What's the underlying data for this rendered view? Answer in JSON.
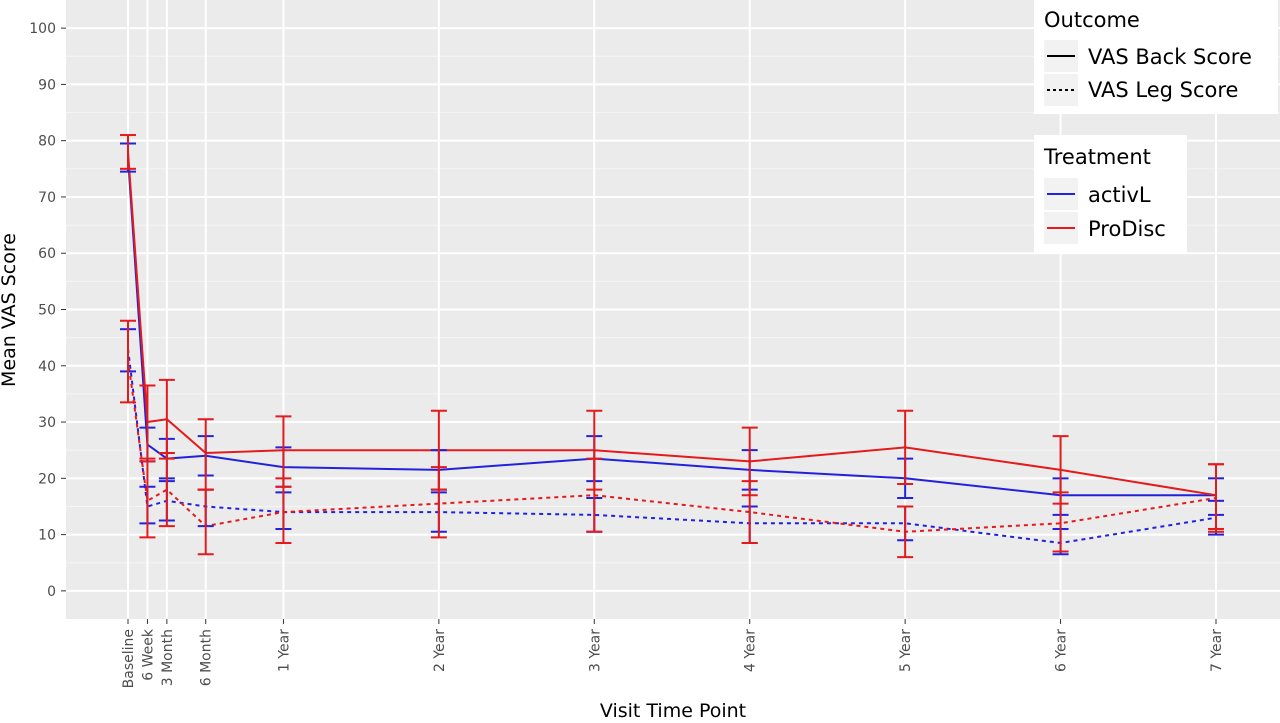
{
  "chart_data": {
    "type": "line",
    "xlabel": "Visit Time Point",
    "ylabel": "Mean VAS Score",
    "ylim": [
      -5,
      105
    ],
    "yticks": [
      0,
      10,
      20,
      30,
      40,
      50,
      60,
      70,
      80,
      90,
      100
    ],
    "x_months": [
      0,
      1.5,
      3,
      6,
      12,
      24,
      36,
      48,
      60,
      72,
      84
    ],
    "categories": [
      "Baseline",
      "6 Week",
      "3 Month",
      "6 Month",
      "1 Year",
      "2 Year",
      "3 Year",
      "4 Year",
      "5 Year",
      "6 Year",
      "7 Year"
    ],
    "grid": true,
    "legend_placement": "top-right",
    "legends": [
      {
        "title": "Outcome",
        "items": [
          {
            "label": "VAS Back Score",
            "linestyle": "solid"
          },
          {
            "label": "VAS Leg Score",
            "linestyle": "dotted"
          }
        ]
      },
      {
        "title": "Treatment",
        "items": [
          {
            "label": "activL",
            "color": "#2222dd"
          },
          {
            "label": "ProDisc",
            "color": "#e41a1c"
          }
        ]
      }
    ],
    "series": [
      {
        "treatment": "activL",
        "outcome": "VAS Back Score",
        "color": "#2222dd",
        "linestyle": "solid",
        "values": [
          77,
          26,
          23.5,
          24,
          22,
          21.5,
          23.5,
          21.5,
          20,
          17,
          17
        ],
        "lower": [
          74.5,
          23,
          20,
          20.5,
          18.5,
          18,
          19.5,
          18,
          16.5,
          13.5,
          13.5
        ],
        "upper": [
          79.5,
          29,
          27,
          27.5,
          25.5,
          25,
          27.5,
          25,
          23.5,
          20,
          20
        ]
      },
      {
        "treatment": "ProDisc",
        "outcome": "VAS Back Score",
        "color": "#e41a1c",
        "linestyle": "solid",
        "values": [
          78,
          30,
          30.5,
          24.5,
          25,
          25,
          25,
          23,
          25.5,
          21.5,
          17
        ],
        "lower": [
          75,
          23.5,
          23.5,
          18,
          18.5,
          18,
          18,
          17,
          19,
          15.5,
          11
        ],
        "upper": [
          81,
          36.5,
          37.5,
          30.5,
          31,
          32,
          32,
          29,
          32,
          27.5,
          22.5
        ]
      },
      {
        "treatment": "activL",
        "outcome": "VAS Leg Score",
        "color": "#2222dd",
        "linestyle": "dotted",
        "values": [
          43,
          15,
          16,
          15,
          14,
          14,
          13.5,
          12,
          12,
          8.5,
          13
        ],
        "lower": [
          39,
          12,
          12.5,
          11.5,
          11,
          10.5,
          10.5,
          8.5,
          9,
          6.5,
          10
        ],
        "upper": [
          46.5,
          18.5,
          19.5,
          18,
          17.5,
          17.5,
          16.5,
          15,
          15,
          11,
          16
        ]
      },
      {
        "treatment": "ProDisc",
        "outcome": "VAS Leg Score",
        "color": "#e41a1c",
        "linestyle": "dotted",
        "values": [
          41,
          16,
          18,
          11.5,
          14,
          15.5,
          17,
          14,
          10.5,
          12,
          16.5
        ],
        "lower": [
          33.5,
          9.5,
          11.5,
          6.5,
          8.5,
          9.5,
          10.5,
          8.5,
          6,
          7,
          10.5
        ],
        "upper": [
          48,
          23,
          24.5,
          18,
          20,
          22,
          23.5,
          19.5,
          15,
          17.5,
          22.5
        ]
      }
    ]
  }
}
